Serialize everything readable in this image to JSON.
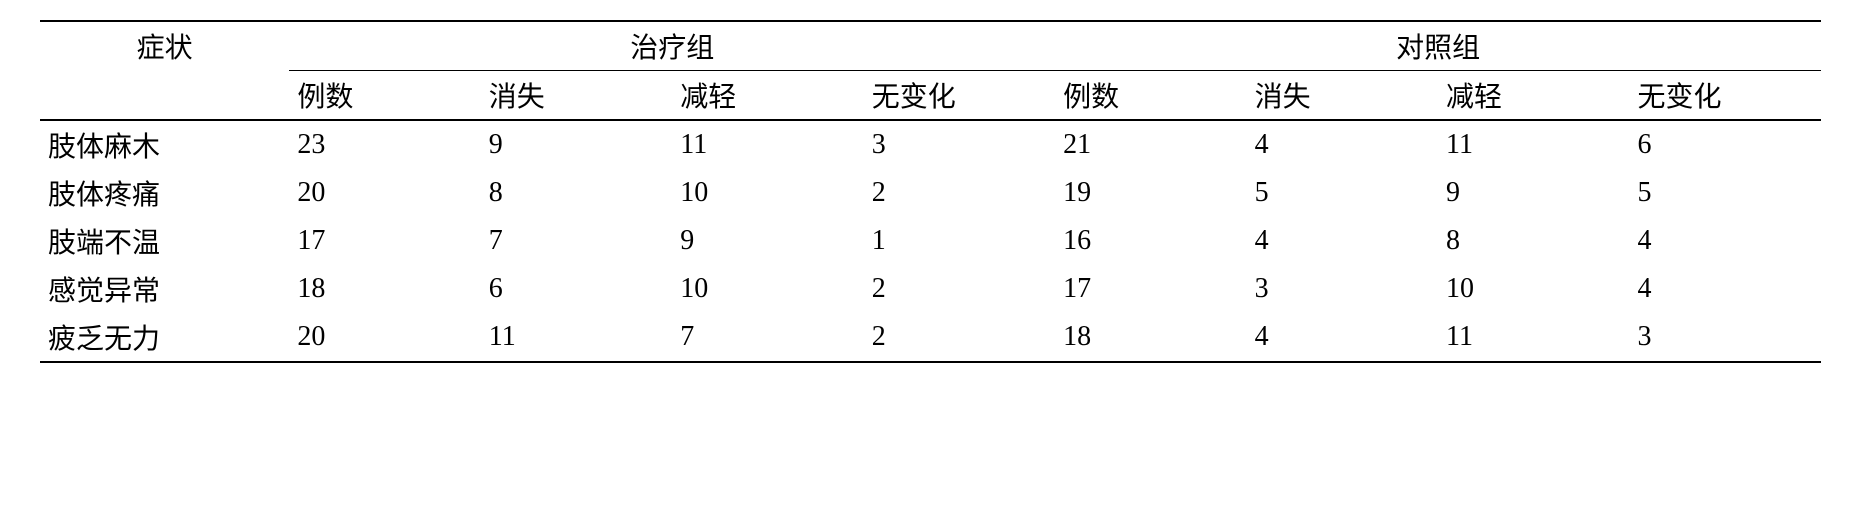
{
  "table": {
    "font_size_pt": 28,
    "text_color": "#000000",
    "background_color": "#ffffff",
    "border_color": "#000000",
    "header": {
      "symptom_label": "症状",
      "group1_label": "治疗组",
      "group2_label": "对照组",
      "sub_columns": [
        "例数",
        "消失",
        "减轻",
        "无变化"
      ]
    },
    "rows": [
      {
        "symptom": "肢体麻木",
        "g1": [
          23,
          9,
          11,
          3
        ],
        "g2": [
          21,
          4,
          11,
          6
        ]
      },
      {
        "symptom": "肢体疼痛",
        "g1": [
          20,
          8,
          10,
          2
        ],
        "g2": [
          19,
          5,
          9,
          5
        ]
      },
      {
        "symptom": "肢端不温",
        "g1": [
          17,
          7,
          9,
          1
        ],
        "g2": [
          16,
          4,
          8,
          4
        ]
      },
      {
        "symptom": "感觉异常",
        "g1": [
          18,
          6,
          10,
          2
        ],
        "g2": [
          17,
          3,
          10,
          4
        ]
      },
      {
        "symptom": "疲乏无力",
        "g1": [
          20,
          11,
          7,
          2
        ],
        "g2": [
          18,
          4,
          11,
          3
        ]
      }
    ]
  }
}
